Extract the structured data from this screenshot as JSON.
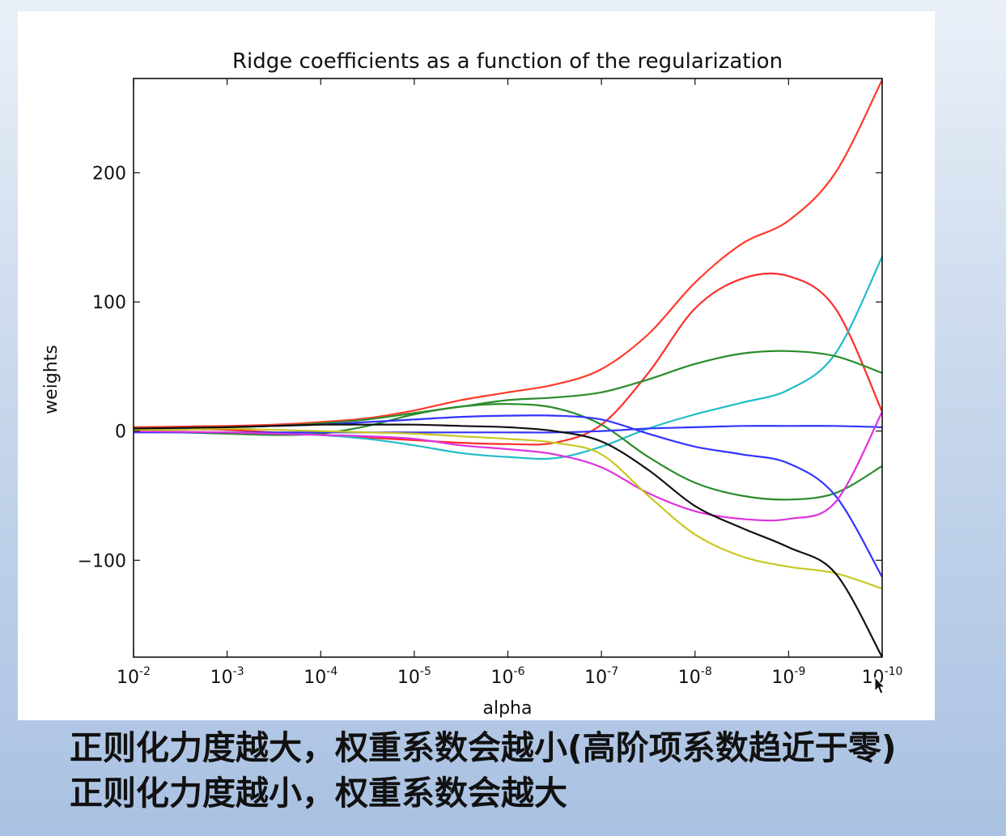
{
  "chart_data": {
    "type": "line",
    "title": "Ridge coefficients as a function of the regularization",
    "xlabel": "alpha",
    "ylabel": "weights",
    "x_scale": "log",
    "x_reversed": true,
    "xlim": [
      0.01,
      1e-10
    ],
    "ylim": [
      -175,
      273
    ],
    "x_ticks": [
      {
        "value": 0.01,
        "base": "10",
        "exp": "-2"
      },
      {
        "value": 0.001,
        "base": "10",
        "exp": "-3"
      },
      {
        "value": 0.0001,
        "base": "10",
        "exp": "-4"
      },
      {
        "value": 1e-05,
        "base": "10",
        "exp": "-5"
      },
      {
        "value": 1e-06,
        "base": "10",
        "exp": "-6"
      },
      {
        "value": 1e-07,
        "base": "10",
        "exp": "-7"
      },
      {
        "value": 1e-08,
        "base": "10",
        "exp": "-8"
      },
      {
        "value": 1e-09,
        "base": "10",
        "exp": "-9"
      },
      {
        "value": 1e-10,
        "base": "10",
        "exp": "-10"
      }
    ],
    "y_ticks": [
      {
        "value": 200,
        "label": "200"
      },
      {
        "value": 100,
        "label": "100"
      },
      {
        "value": 0,
        "label": "0"
      },
      {
        "value": -100,
        "label": "−100"
      }
    ],
    "grid": false,
    "x": [
      0.01,
      0.00316,
      0.001,
      0.000316,
      0.0001,
      3.16e-05,
      1e-05,
      3.16e-06,
      1e-06,
      3.16e-07,
      1e-07,
      3.16e-08,
      1e-08,
      3.16e-09,
      1e-09,
      3.16e-10,
      1e-10
    ],
    "series": [
      {
        "color": "#ff3a2a",
        "values": [
          3,
          3.5,
          4,
          5,
          7,
          10,
          16,
          24,
          30,
          36,
          48,
          75,
          115,
          145,
          163,
          200,
          272
        ]
      },
      {
        "color": "#ff2e2e",
        "values": [
          2,
          1.5,
          1,
          -1,
          -3,
          -5,
          -7,
          -9,
          -10,
          -9,
          5,
          45,
          95,
          118,
          120,
          95,
          15
        ]
      },
      {
        "color": "#1fbcc8",
        "values": [
          0,
          -1,
          -1.5,
          -2,
          -3,
          -6,
          -11,
          -17,
          -20,
          -21,
          -12,
          2,
          13,
          22,
          32,
          60,
          135
        ]
      },
      {
        "color": "#2a8c2a",
        "values": [
          1,
          2,
          3,
          4,
          6,
          9,
          14,
          19,
          24,
          26,
          30,
          40,
          52,
          60,
          62,
          58,
          45
        ]
      },
      {
        "color": "#2a8c2a",
        "values": [
          0,
          -1,
          -2,
          -3,
          -2,
          4,
          13,
          19,
          21,
          18,
          5,
          -20,
          -40,
          -50,
          -53,
          -48,
          -27
        ]
      },
      {
        "color": "#3333ff",
        "values": [
          1,
          2,
          3,
          4,
          5,
          7,
          9,
          11,
          12,
          12,
          9,
          -2,
          -12,
          -18,
          -25,
          -50,
          -113
        ]
      },
      {
        "color": "#3333ff",
        "values": [
          -1,
          -1,
          -1,
          -1,
          -1,
          -1,
          -1,
          -1,
          -1,
          -1,
          0,
          2,
          3,
          4,
          4,
          4,
          3
        ]
      },
      {
        "color": "#dd33dd",
        "values": [
          0,
          -0.5,
          -1,
          -2,
          -3,
          -4,
          -6,
          -11,
          -14,
          -18,
          -28,
          -48,
          -62,
          -68,
          -68,
          -55,
          15
        ]
      },
      {
        "color": "#c8c822",
        "values": [
          1,
          1,
          2,
          1,
          0,
          -1,
          -2,
          -4,
          -6,
          -9,
          -18,
          -50,
          -80,
          -97,
          -105,
          -110,
          -122
        ]
      },
      {
        "color": "#111111",
        "values": [
          2,
          2.5,
          3,
          4,
          5,
          5,
          5,
          4,
          3,
          0,
          -8,
          -30,
          -58,
          -75,
          -90,
          -110,
          -175
        ]
      }
    ]
  },
  "caption": {
    "line1": "正则化力度越大，权重系数会越小(高阶项系数趋近于零)",
    "line2": "正则化力度越小，权重系数会越大"
  }
}
